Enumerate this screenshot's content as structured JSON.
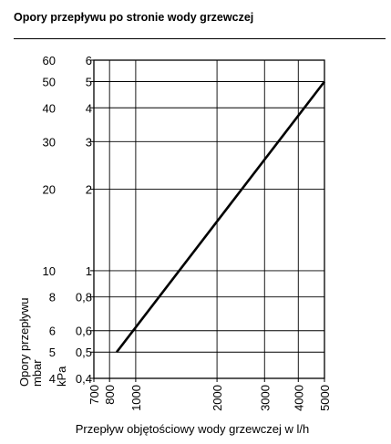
{
  "header": {
    "title": "Opory przepływu po stronie wody grzewczej"
  },
  "chart_data": {
    "type": "line",
    "title": "Opory przepływu po stronie wody grzewczej",
    "xlabel": "Przepływ objętościowy wody grzewczej w l/h",
    "ylabel": "Opory przepływu",
    "y_units": [
      "mbar",
      "kPa"
    ],
    "x_scale": "log",
    "y_scale": "log",
    "xlim": [
      700,
      5000
    ],
    "ylim_kpa": [
      0.4,
      6
    ],
    "x_ticks": [
      700,
      800,
      1000,
      2000,
      3000,
      4000,
      5000
    ],
    "x_tick_labels": [
      "700",
      "800",
      "1000",
      "2000",
      "3000",
      "4000",
      "5000"
    ],
    "y_ticks_kpa": [
      0.4,
      0.5,
      0.6,
      0.8,
      1,
      2,
      3,
      4,
      5,
      6
    ],
    "y_tick_labels_kpa": [
      "0,4",
      "0,5",
      "0,6",
      "0,8",
      "1",
      "2",
      "3",
      "4",
      "5",
      "6"
    ],
    "y_tick_labels_mbar": [
      "4",
      "5",
      "6",
      "8",
      "10",
      "20",
      "30",
      "40",
      "50",
      "60"
    ],
    "grid": true,
    "series": [
      {
        "x": [
          850,
          5000
        ],
        "y_kpa": [
          0.5,
          5.0
        ]
      }
    ]
  }
}
